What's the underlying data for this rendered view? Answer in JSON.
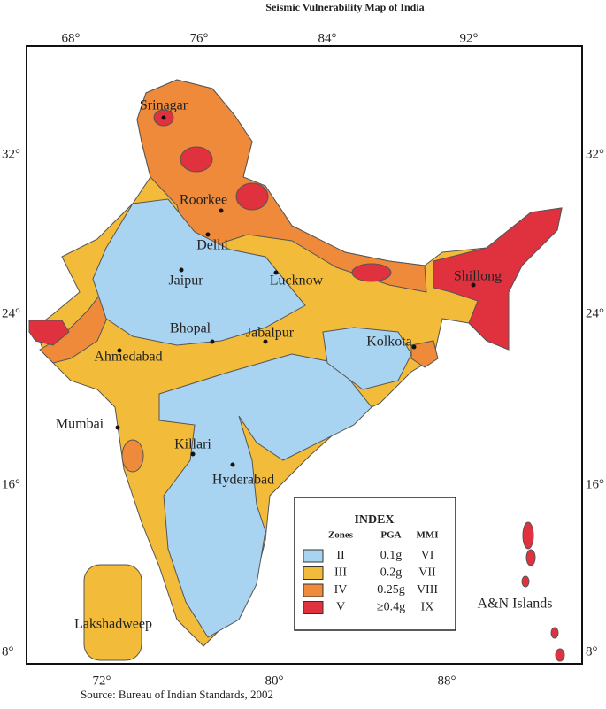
{
  "title": "Seismic Vulnerability Map of India",
  "source": "Source: Bureau of Indian Standards, 2002",
  "axes": {
    "top": [
      "68°",
      "76°",
      "84°",
      "92°"
    ],
    "bottom": [
      "72°",
      "80°",
      "88°"
    ],
    "left": [
      "32°",
      "24°",
      "16°",
      "8°"
    ],
    "right": [
      "32°",
      "24°",
      "16°",
      "8°"
    ]
  },
  "places": [
    "Srinagar",
    "Roorkee",
    "Delhi",
    "Jaipur",
    "Lucknow",
    "Bhopal",
    "Jabalpur",
    "Kolkota",
    "Ahmedabad",
    "Mumbai",
    "Killari",
    "Hyderabad",
    "Shillong"
  ],
  "regions": [
    "Lakshadweep",
    "A&N Islands"
  ],
  "legend": {
    "title": "INDEX",
    "headers": [
      "Zones",
      "PGA",
      "MMI"
    ],
    "rows": [
      {
        "zone": "II",
        "pga": "0.1g",
        "mmi": "VI",
        "color": "#a8d4f2"
      },
      {
        "zone": "III",
        "pga": "0.2g",
        "mmi": "VII",
        "color": "#f2bb3a"
      },
      {
        "zone": "IV",
        "pga": "0.25g",
        "mmi": "VIII",
        "color": "#ee8a3a"
      },
      {
        "zone": "V",
        "pga": "≥0.4g",
        "mmi": "IX",
        "color": "#e0313f"
      }
    ]
  }
}
